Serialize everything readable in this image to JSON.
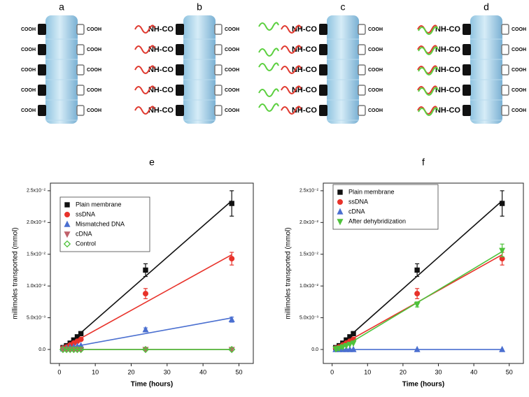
{
  "diagram": {
    "panels": [
      {
        "label": "a",
        "left": [
          "COOH",
          "COOH",
          "COOH",
          "COOH",
          "COOH"
        ],
        "right": [
          "COOH",
          "COOH",
          "COOH",
          "COOH",
          "COOH"
        ],
        "strands": "none"
      },
      {
        "label": "b",
        "left": [
          "NH-CO",
          "NH-CO",
          "NH-CO",
          "NH-CO",
          "NH-CO"
        ],
        "right": [
          "COOH",
          "COOH",
          "COOH",
          "COOH",
          "COOH"
        ],
        "strands": "ssDNA"
      },
      {
        "label": "c",
        "left": [
          "NH-CO",
          "NH-CO",
          "NH-CO",
          "NH-CO",
          "NH-CO"
        ],
        "right": [
          "COOH",
          "COOH",
          "COOH",
          "COOH",
          "COOH"
        ],
        "strands": "ssDNA+free"
      },
      {
        "label": "d",
        "left": [
          "NH-CO",
          "NH-CO",
          "NH-CO",
          "NH-CO",
          "NH-CO"
        ],
        "right": [
          "COOH",
          "COOH",
          "COOH",
          "COOH",
          "COOH"
        ],
        "strands": "hybrid"
      }
    ]
  },
  "chart_data": [
    {
      "type": "scatter",
      "title": "e",
      "x_label": "Time (hours)",
      "y_label": "millimoles transported (mmol)",
      "x": [
        1,
        2,
        3,
        4,
        5,
        6,
        24,
        48
      ],
      "xlim": [
        -2.5,
        54
      ],
      "xticks": [
        0,
        10,
        20,
        30,
        40,
        50
      ],
      "ylim": [
        -0.0022,
        0.0262
      ],
      "yticks": [
        {
          "value": 0,
          "label": "0.0"
        },
        {
          "value": 0.005,
          "label": "5.0x10⁻³"
        },
        {
          "value": 0.01,
          "label": "1.0x10⁻²"
        },
        {
          "value": 0.015,
          "label": "1.5x10⁻²"
        },
        {
          "value": 0.02,
          "label": "2.0x10⁻²"
        },
        {
          "value": 0.025,
          "label": "2.5x10⁻²"
        }
      ],
      "legend": "upper-left",
      "fit_line": true,
      "series": [
        {
          "name": "Plain membrane",
          "color": "#111111",
          "marker": "square",
          "values": [
            0.0003,
            0.0006,
            0.001,
            0.0015,
            0.002,
            0.0025,
            0.0125,
            0.023
          ],
          "errors": [
            null,
            null,
            null,
            null,
            null,
            0.0002,
            0.001,
            0.002
          ]
        },
        {
          "name": "ssDNA",
          "color": "#e8322a",
          "marker": "circle",
          "values": [
            0.0002,
            0.0004,
            0.0007,
            0.001,
            0.0013,
            0.0016,
            0.0088,
            0.0143
          ],
          "errors": [
            null,
            null,
            null,
            null,
            null,
            0.0002,
            0.0008,
            0.001
          ]
        },
        {
          "name": "Mismatched DNA",
          "color": "#4a6fd0",
          "marker": "triangle-up",
          "values": [
            0.0001,
            0.0002,
            0.0003,
            0.0004,
            0.0005,
            0.0006,
            0.0031,
            0.0047
          ],
          "errors": [
            null,
            null,
            null,
            null,
            null,
            null,
            0.0003,
            0.0004
          ]
        },
        {
          "name": "cDNA",
          "color": "#c0606a",
          "marker": "triangle-down",
          "values": [
            0,
            0,
            0,
            0,
            0,
            0,
            0,
            0
          ],
          "errors": [
            null,
            null,
            null,
            null,
            null,
            null,
            null,
            null
          ]
        },
        {
          "name": "Control",
          "color": "#4ec23b",
          "marker": "diamond",
          "values": [
            0,
            0,
            0,
            0,
            0,
            0,
            0,
            0
          ],
          "errors": [
            null,
            null,
            null,
            null,
            null,
            null,
            null,
            null
          ]
        }
      ]
    },
    {
      "type": "scatter",
      "title": "f",
      "x_label": "Time (hours)",
      "y_label": "millimoles transported (mmol)",
      "x": [
        1,
        2,
        3,
        4,
        5,
        6,
        24,
        48
      ],
      "xlim": [
        -2.5,
        54
      ],
      "xticks": [
        0,
        10,
        20,
        30,
        40,
        50
      ],
      "ylim": [
        -0.0022,
        0.0262
      ],
      "yticks": [
        {
          "value": 0,
          "label": "0.0"
        },
        {
          "value": 0.005,
          "label": "5.0x10⁻³"
        },
        {
          "value": 0.01,
          "label": "1.0x10⁻²"
        },
        {
          "value": 0.015,
          "label": "1.5x10⁻²"
        },
        {
          "value": 0.02,
          "label": "2.0x10⁻²"
        },
        {
          "value": 0.025,
          "label": "2.5x10⁻²"
        }
      ],
      "legend": "upper-left",
      "fit_line": true,
      "series": [
        {
          "name": "Plain membrane",
          "color": "#111111",
          "marker": "square",
          "values": [
            0.0003,
            0.0006,
            0.001,
            0.0015,
            0.002,
            0.0025,
            0.0125,
            0.023
          ],
          "errors": [
            null,
            null,
            null,
            null,
            null,
            0.0002,
            0.001,
            0.002
          ]
        },
        {
          "name": "ssDNA",
          "color": "#e8322a",
          "marker": "circle",
          "values": [
            0.0002,
            0.0004,
            0.0007,
            0.001,
            0.0013,
            0.0016,
            0.0088,
            0.0143
          ],
          "errors": [
            null,
            null,
            null,
            null,
            null,
            0.0002,
            0.0008,
            0.001
          ]
        },
        {
          "name": "cDNA",
          "color": "#4a6fd0",
          "marker": "triangle-up",
          "values": [
            0,
            0,
            0,
            0,
            0,
            0,
            0,
            0
          ],
          "errors": [
            null,
            null,
            null,
            null,
            null,
            null,
            null,
            null
          ]
        },
        {
          "name": "After dehybridization",
          "color": "#4ec23b",
          "marker": "triangle-down",
          "values": [
            0.0001,
            0.0002,
            0.0004,
            0.0006,
            0.0008,
            0.001,
            0.0071,
            0.0156
          ],
          "errors": [
            null,
            null,
            null,
            null,
            null,
            null,
            0.0004,
            0.001
          ]
        }
      ]
    }
  ]
}
